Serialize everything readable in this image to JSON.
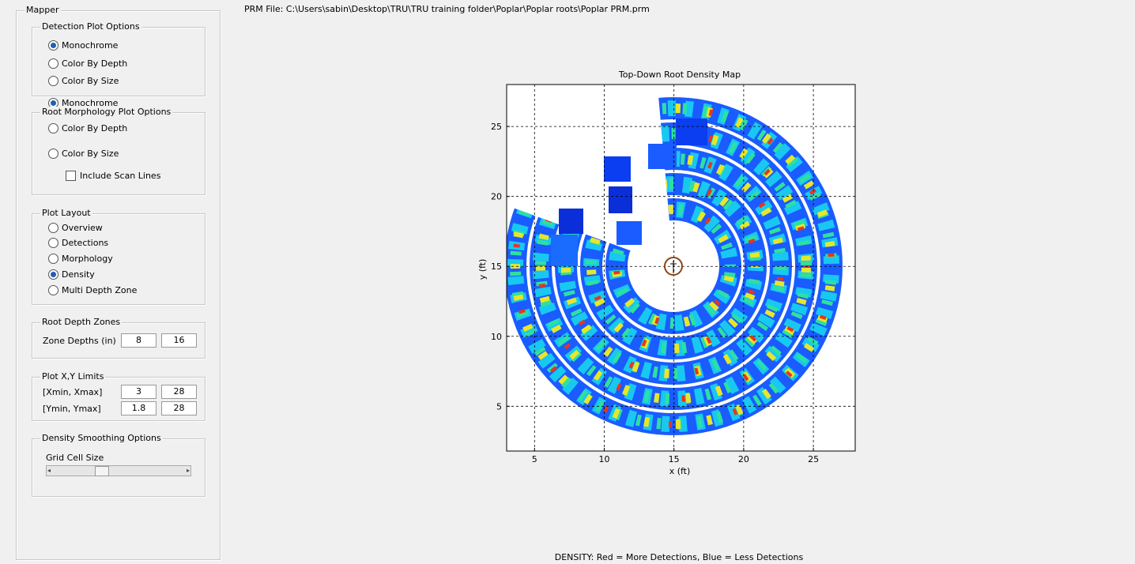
{
  "file_path": "PRM File: C:\\Users\\sabin\\Desktop\\TRU\\TRU training folder\\Poplar\\Poplar roots\\Poplar PRM.prm",
  "panel": {
    "title": "Mapper",
    "detection_plot_options": {
      "title": "Detection Plot Options",
      "options": [
        "Monochrome",
        "Color By Depth",
        "Color By Size"
      ],
      "selected": 0
    },
    "root_morphology_plot_options": {
      "title": "Root Morphology Plot Options",
      "options": [
        "Monochrome",
        "Color By Depth",
        "Color By Size"
      ],
      "selected": 0,
      "checkbox": "Include Scan Lines"
    },
    "plot_layout": {
      "title": "Plot Layout",
      "options": [
        "Overview",
        "Detections",
        "Morphology",
        "Density",
        "Multi Depth Zone"
      ],
      "selected": 3
    },
    "root_depth_zones": {
      "title": "Root Depth Zones",
      "label": "Zone Depths (in)",
      "values": [
        8,
        16
      ]
    },
    "plot_limits": {
      "title": "Plot X,Y Limits",
      "rows": [
        {
          "label": "[Xmin, Xmax]",
          "values": [
            3,
            28
          ]
        },
        {
          "label": "[Ymin, Ymax]",
          "values": [
            1.8,
            28
          ]
        }
      ]
    },
    "density_smoothing": {
      "title": "Density Smoothing Options",
      "label": "Grid Cell Size"
    }
  },
  "chart_data": {
    "type": "heatmap",
    "title": "Top-Down Root Density Map",
    "x_label": "x (ft)",
    "y_label": "y (ft)",
    "xlim": [
      3,
      28
    ],
    "ylim": [
      1.8,
      28
    ],
    "xticks": [
      5,
      10,
      15,
      20,
      25
    ],
    "yticks": [
      5,
      10,
      15,
      20,
      25
    ],
    "grid": true
  },
  "footer": "DENSITY: Red = More Detections, Blue = Less Detections"
}
